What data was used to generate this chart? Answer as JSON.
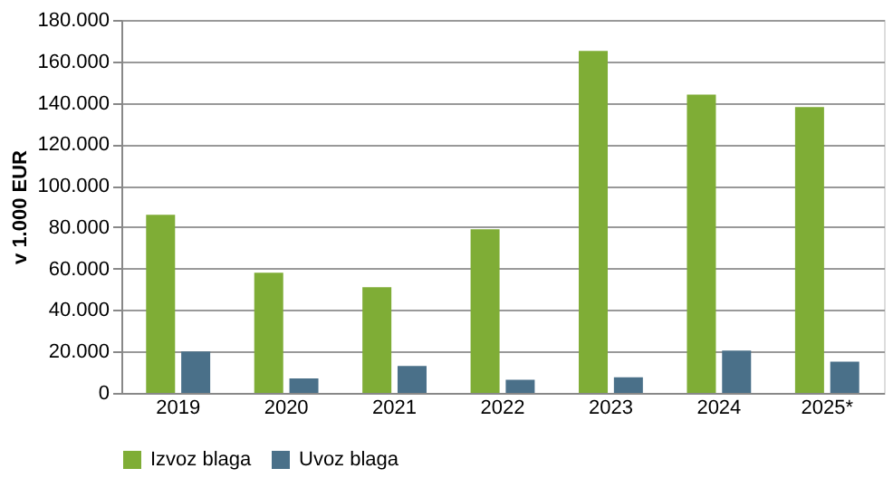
{
  "chart_data": {
    "type": "bar",
    "ylabel": "v 1.000 EUR",
    "categories": [
      "2019",
      "2020",
      "2021",
      "2022",
      "2023",
      "2024",
      "2025*"
    ],
    "series": [
      {
        "name": "Izvoz blaga",
        "color": "#7fad36",
        "values": [
          86000,
          58000,
          51000,
          79000,
          165000,
          144000,
          138000
        ]
      },
      {
        "name": "Uvoz blaga",
        "color": "#4a7089",
        "values": [
          20000,
          7000,
          13000,
          6300,
          7500,
          20400,
          15100
        ]
      }
    ],
    "ylim": [
      0,
      180000
    ],
    "yticks": [
      {
        "value": 0,
        "label": "0"
      },
      {
        "value": 20000,
        "label": "20.000"
      },
      {
        "value": 40000,
        "label": "40.000"
      },
      {
        "value": 60000,
        "label": "60.000"
      },
      {
        "value": 80000,
        "label": "80.000"
      },
      {
        "value": 100000,
        "label": "100.000"
      },
      {
        "value": 120000,
        "label": "120.000"
      },
      {
        "value": 140000,
        "label": "140.000"
      },
      {
        "value": 160000,
        "label": "160.000"
      },
      {
        "value": 180000,
        "label": "180.000"
      }
    ],
    "grid": "y",
    "legend": "bottom"
  }
}
